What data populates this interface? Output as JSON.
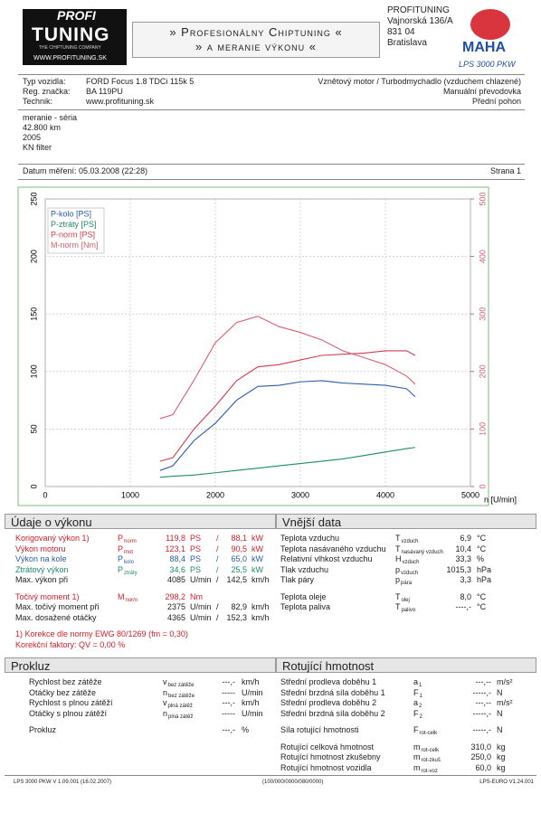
{
  "header": {
    "logo_top": "PROFI",
    "logo_main": "TUNING",
    "logo_tag": "THE CHIPTUNING COMPANY",
    "logo_url": "WWW.PROFITUNING.SK",
    "banner_1": "» Profesionálny Chiptuning «",
    "banner_2": "» a meranie výkonu «",
    "address": [
      "PROFITUNING",
      "Vajnorská 136/A",
      "831 04",
      "Bratislava"
    ],
    "maha": "MAHA",
    "maha_model": "LPS 3000 PKW"
  },
  "vehicle": {
    "left": [
      [
        "Typ vozidla:",
        "FORD Focus 1.8 TDCi 115k 5"
      ],
      [
        "Reg. značka:",
        "BA 119PU"
      ],
      [
        "Technik:",
        "www.profituning.sk"
      ]
    ],
    "right": [
      "Vznětový motor / Turbodmychadlo (vzduchem chlazené)",
      "Manuální převodovka",
      "Přední pohon"
    ]
  },
  "notes": [
    "meranie - séria",
    "42.800 km",
    "2005",
    "KN filter"
  ],
  "date": {
    "label": "Datum měření: 05.03.2008 (22:28)",
    "page": "Strana 1"
  },
  "chart_data": {
    "type": "line",
    "x": [
      1350,
      1500,
      1750,
      2000,
      2250,
      2500,
      2750,
      3000,
      3250,
      3500,
      3750,
      4000,
      4250,
      4350
    ],
    "xlim": [
      0,
      5000
    ],
    "xticks": [
      0,
      1000,
      2000,
      3000,
      4000,
      5000
    ],
    "xlabel": "n [U/min]",
    "ylim": [
      0,
      250
    ],
    "yticks": [
      0,
      50,
      100,
      150,
      200,
      250
    ],
    "y2lim": [
      0,
      500
    ],
    "y2ticks": [
      0,
      100,
      200,
      300,
      400,
      500
    ],
    "grid": true,
    "legend": "top-left",
    "y2color": "#d9606e",
    "series": [
      {
        "name": "P-kolo [PS]",
        "color": "#2a5caa",
        "values": [
          14,
          18,
          40,
          55,
          75,
          87,
          88,
          91,
          92,
          90,
          89,
          88,
          85,
          78
        ]
      },
      {
        "name": "P-ztráty [PS]",
        "color": "#1f8a6a",
        "values": [
          8,
          9,
          10,
          12,
          14,
          16,
          18,
          20,
          22,
          24,
          27,
          30,
          33,
          34
        ]
      },
      {
        "name": "P-norm [PS]",
        "color": "#d23c50",
        "values": [
          22,
          25,
          50,
          70,
          92,
          104,
          106,
          110,
          114,
          115,
          116,
          118,
          118,
          114
        ]
      },
      {
        "name": "M-norm [Nm]",
        "color": "#d9606e",
        "axis": "y2",
        "values": [
          118,
          125,
          185,
          250,
          285,
          296,
          278,
          268,
          255,
          236,
          224,
          212,
          192,
          178
        ]
      }
    ]
  },
  "perf": {
    "title": "Údaje o výkonu",
    "groups": [
      [
        {
          "color": "#d0202a",
          "cells": [
            "Korigovaný výkon 1)",
            {
              "sym": "P",
              "sub": "norm"
            },
            "119,8",
            "PS",
            "/",
            "88,1",
            "kW"
          ]
        },
        {
          "color": "#d0202a",
          "cells": [
            "Výkon motoru",
            {
              "sym": "P",
              "sub": "mot"
            },
            "123,1",
            "PS",
            "/",
            "90,5",
            "kW"
          ]
        },
        {
          "color": "#2a5caa",
          "cells": [
            "Výkon na kole",
            {
              "sym": "P",
              "sub": "kolo"
            },
            "88,4",
            "PS",
            "/",
            "65,0",
            "kW"
          ]
        },
        {
          "color": "#1f8a6a",
          "cells": [
            "Ztrátový výkon",
            {
              "sym": "P",
              "sub": "ztráty"
            },
            "34,6",
            "PS",
            "/",
            "25,5",
            "kW"
          ]
        },
        {
          "color": "#222222",
          "cells": [
            "Max. výkon při",
            null,
            "4085",
            "U/min",
            "/",
            "142,5",
            "km/h"
          ]
        }
      ],
      [
        {
          "color": "#d0202a",
          "cells": [
            "Točivý moment 1)",
            {
              "sym": "M",
              "sub": "norm"
            },
            "298,2",
            "Nm"
          ]
        },
        {
          "color": "#222222",
          "cells": [
            "Max. točivý moment při",
            null,
            "2375",
            "U/min",
            "/",
            "82,9",
            "km/h"
          ]
        },
        {
          "color": "#222222",
          "cells": [
            "Max. dosažené otáčky",
            null,
            "4365",
            "U/min",
            "/",
            "152,3",
            "km/h"
          ]
        }
      ],
      [
        {
          "color": "#d0202a",
          "cells": [
            "1) Korekce dle normy EWG 80/1269 (fm = 0,30)"
          ]
        },
        {
          "color": "#d0202a",
          "cells": [
            "Korekční faktory: QV = 0,00 %"
          ]
        }
      ]
    ]
  },
  "external": {
    "title": "Vnější data",
    "groups": [
      [
        {
          "cells": [
            "Teplota vzduchu",
            {
              "sym": "T",
              "sub": "vzduch"
            },
            "6,9",
            "°C"
          ]
        },
        {
          "cells": [
            "Teplota nasávaného vzduchu",
            {
              "sym": "T",
              "sub": "nasávaný vzduch"
            },
            "10,4",
            "°C"
          ]
        },
        {
          "cells": [
            "Relativní vlhkost vzduchu",
            {
              "sym": "H",
              "sub": "vzduch"
            },
            "33,3",
            "%"
          ]
        },
        {
          "cells": [
            "Tlak vzduchu",
            {
              "sym": "p",
              "sub": "vzduch"
            },
            "1015,3",
            "hPa"
          ]
        },
        {
          "cells": [
            "Tlak páry",
            {
              "sym": "p",
              "sub": "pára"
            },
            "3,3",
            "hPa"
          ]
        }
      ],
      [
        {
          "cells": [
            "Teplota oleje",
            {
              "sym": "T",
              "sub": "olej"
            },
            "8,0",
            "°C"
          ]
        },
        {
          "cells": [
            "Teplota paliva",
            {
              "sym": "T",
              "sub": "palivo"
            },
            "----,-",
            "°C"
          ]
        }
      ]
    ]
  },
  "slip": {
    "title": "Prokluz",
    "groups": [
      [
        {
          "cells": [
            "Rychlost bez zátěže",
            {
              "sym": "v",
              "sub": "bez zátěže"
            },
            "---,-",
            "km/h"
          ]
        },
        {
          "cells": [
            "Otáčky bez zátěže",
            {
              "sym": "n",
              "sub": "bez zátěže"
            },
            "-----",
            "U/min"
          ]
        },
        {
          "cells": [
            "Rychlost s plnou zátěží",
            {
              "sym": "v",
              "sub": "plná zátěž"
            },
            "---,-",
            "km/h"
          ]
        },
        {
          "cells": [
            "Otáčky s plnou zátěží",
            {
              "sym": "n",
              "sub": "plná zátěž"
            },
            "-----",
            "U/min"
          ]
        }
      ],
      [
        {
          "cells": [
            "Prokluz",
            null,
            "---,-",
            "%"
          ]
        }
      ]
    ]
  },
  "rot": {
    "title": "Rotující hmotnost",
    "groups": [
      [
        {
          "cells": [
            "Střední prodleva doběhu 1",
            {
              "sym": "a",
              "sub": "1"
            },
            "---,--",
            "m/s²"
          ]
        },
        {
          "cells": [
            "Střední brzdná síla doběhu 1",
            {
              "sym": "F",
              "sub": "1"
            },
            "-----,-",
            "N"
          ]
        },
        {
          "cells": [
            "Střední prodleva doběhu 2",
            {
              "sym": "a",
              "sub": "2"
            },
            "---,--",
            "m/s²"
          ]
        },
        {
          "cells": [
            "Střední brzdná síla doběhu 2",
            {
              "sym": "F",
              "sub": "2"
            },
            "-----,-",
            "N"
          ]
        }
      ],
      [
        {
          "cells": [
            "Síla rotující hmotnosti",
            {
              "sym": "F",
              "sub": "rot-celk"
            },
            "-----,-",
            "N"
          ]
        }
      ],
      [
        {
          "cells": [
            "Rotující celková hmotnost",
            {
              "sym": "m",
              "sub": "rot-celk"
            },
            "310,0",
            "kg"
          ]
        },
        {
          "cells": [
            "Rotující hmotnost zkušebny",
            {
              "sym": "m",
              "sub": "rot-zkuš"
            },
            "250,0",
            "kg"
          ]
        },
        {
          "cells": [
            "Rotující hmotnost vozidla",
            {
              "sym": "m",
              "sub": "rot-voz"
            },
            "60,0",
            "kg"
          ]
        }
      ]
    ]
  },
  "footer": [
    "LPS 3000 PKW V 1.09.001 (16.02.2007)",
    "(100/000/0000/080/0000)",
    "LPS-EURO V1.24.001"
  ]
}
